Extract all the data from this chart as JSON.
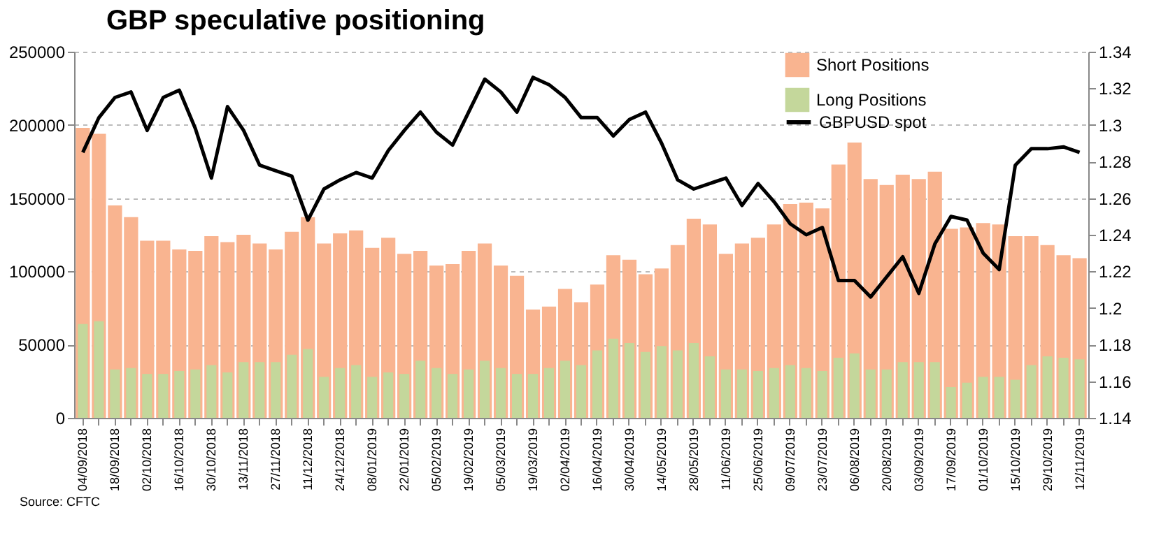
{
  "chart_data": {
    "type": "bar",
    "title": "GBP speculative positioning",
    "categories": [
      "04/09/2018",
      null,
      "18/09/2018",
      null,
      "02/10/2018",
      null,
      "16/10/2018",
      null,
      "30/10/2018",
      null,
      "13/11/2018",
      null,
      "27/11/2018",
      null,
      "11/12/2018",
      null,
      "24/12/2018",
      null,
      "08/01/2019",
      null,
      "22/01/2019",
      null,
      "05/02/2019",
      null,
      "19/02/2019",
      null,
      "05/03/2019",
      null,
      "19/03/2019",
      null,
      "02/04/2019",
      null,
      "16/04/2019",
      null,
      "30/04/2019",
      null,
      "14/05/2019",
      null,
      "28/05/2019",
      null,
      "11/06/2019",
      null,
      "25/06/2019",
      null,
      "09/07/2019",
      null,
      "23/07/2019",
      null,
      "06/08/2019",
      null,
      "20/08/2019",
      null,
      "03/09/2019",
      null,
      "17/09/2019",
      null,
      "01/10/2019",
      null,
      "15/10/2019",
      null,
      "29/10/2019",
      null,
      "12/11/2019"
    ],
    "series": [
      {
        "name": "Short Positions",
        "color": "#f9b490",
        "values": [
          198000,
          194000,
          145000,
          137000,
          121000,
          121000,
          115000,
          114000,
          124000,
          120000,
          125000,
          119000,
          115000,
          127000,
          137000,
          119000,
          126000,
          128000,
          116000,
          123000,
          112000,
          114000,
          104000,
          105000,
          114000,
          119000,
          104000,
          97000,
          74000,
          76000,
          88000,
          79000,
          91000,
          111000,
          108000,
          98000,
          102000,
          118000,
          136000,
          132000,
          112000,
          119000,
          123000,
          132000,
          146000,
          147000,
          143000,
          173000,
          188000,
          163000,
          159000,
          166000,
          163000,
          168000,
          129000,
          130000,
          133000,
          132000,
          124000,
          124000,
          118000,
          111000,
          109000
        ]
      },
      {
        "name": "Long Positions",
        "color": "#c4d79b",
        "values": [
          64000,
          66000,
          33000,
          34000,
          30000,
          30000,
          32000,
          33000,
          36000,
          31000,
          38000,
          38000,
          38000,
          43000,
          47000,
          28000,
          34000,
          36000,
          28000,
          31000,
          30000,
          39000,
          34000,
          30000,
          33000,
          39000,
          34000,
          30000,
          30000,
          34000,
          39000,
          36000,
          46000,
          54000,
          51000,
          45000,
          49000,
          46000,
          51000,
          42000,
          33000,
          33000,
          32000,
          34000,
          36000,
          34000,
          32000,
          41000,
          44000,
          33000,
          33000,
          38000,
          38000,
          38000,
          21000,
          24000,
          28000,
          28000,
          26000,
          36000,
          42000,
          41000,
          40000
        ]
      },
      {
        "name": "GBPUSD spot",
        "type": "line",
        "axis": "y2",
        "color": "#000000",
        "values": [
          1.285,
          1.304,
          1.315,
          1.318,
          1.297,
          1.315,
          1.319,
          1.298,
          1.271,
          1.31,
          1.297,
          1.278,
          1.275,
          1.272,
          1.248,
          1.265,
          1.27,
          1.274,
          1.271,
          1.286,
          1.297,
          1.307,
          1.296,
          1.289,
          1.307,
          1.325,
          1.318,
          1.307,
          1.326,
          1.322,
          1.315,
          1.304,
          1.304,
          1.294,
          1.303,
          1.307,
          1.29,
          1.27,
          1.265,
          1.268,
          1.271,
          1.256,
          1.268,
          1.258,
          1.246,
          1.24,
          1.244,
          1.215,
          1.215,
          1.206,
          1.217,
          1.228,
          1.208,
          1.235,
          1.25,
          1.248,
          1.23,
          1.221,
          1.278,
          1.287,
          1.287,
          1.288,
          1.285
        ]
      }
    ],
    "ylim": [
      0,
      250000
    ],
    "yticks": [
      0,
      50000,
      100000,
      150000,
      200000,
      250000
    ],
    "y2lim": [
      1.14,
      1.34
    ],
    "y2ticks": [
      1.14,
      1.16,
      1.18,
      1.2,
      1.22,
      1.24,
      1.26,
      1.28,
      1.3,
      1.32,
      1.34
    ],
    "grid": "y",
    "legend": "top right",
    "annotations": [
      "Source: CFTC"
    ]
  }
}
